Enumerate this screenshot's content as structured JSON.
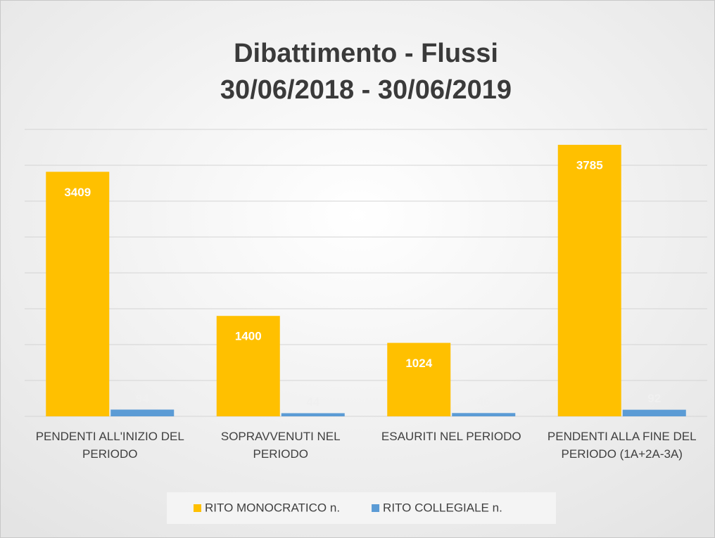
{
  "chart_data": {
    "type": "bar",
    "title": [
      "Dibattimento - Flussi",
      "30/06/2018 - 30/06/2019"
    ],
    "categories": [
      "PENDENTI ALL'INIZIO DEL PERIODO",
      "SOPRAVVENUTI NEL PERIODO",
      "ESAURITI NEL PERIODO",
      "PENDENTI ALLA FINE DEL PERIODO (1A+2A-3A)"
    ],
    "series": [
      {
        "name": "RITO MONOCRATICO n.",
        "color": "#FFC000",
        "values": [
          3409,
          1400,
          1024,
          3785
        ]
      },
      {
        "name": "RITO COLLEGIALE n.",
        "color": "#5B9BD5",
        "values": [
          94,
          44,
          46,
          92
        ]
      }
    ],
    "ylim": [
      0,
      4000
    ],
    "yticks": [
      0,
      500,
      1000,
      1500,
      2000,
      2500,
      3000,
      3500,
      4000
    ],
    "grid": true,
    "legend": "bottom"
  }
}
